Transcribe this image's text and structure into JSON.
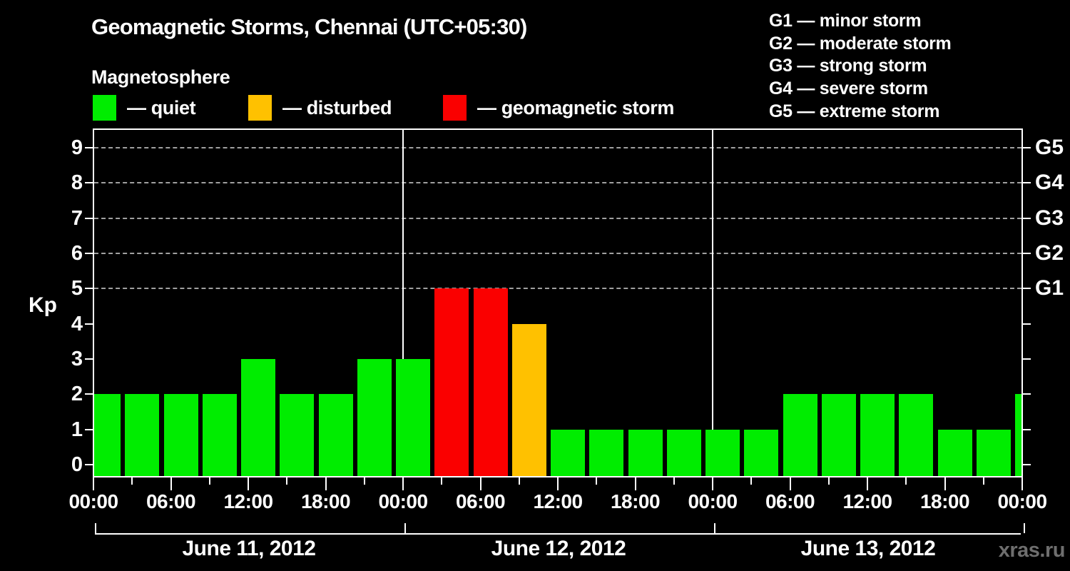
{
  "title": "Geomagnetic Storms, Chennai (UTC+05:30)",
  "legend": {
    "heading": "Magnetosphere",
    "items": [
      {
        "key": "quiet",
        "label": "— quiet",
        "color": "#00ed00"
      },
      {
        "key": "disturbed",
        "label": "— disturbed",
        "color": "#ffc100"
      },
      {
        "key": "storm",
        "label": "— geomagnetic storm",
        "color": "#fa0000"
      }
    ]
  },
  "g_scale_legend": {
    "lines": [
      "G1 — minor storm",
      "G2 — moderate storm",
      "G3 — strong storm",
      "G4 — severe storm",
      "G5 — extreme storm"
    ]
  },
  "watermark": "xras.ru",
  "chart_data": {
    "type": "bar",
    "title": "Geomagnetic Storms, Chennai (UTC+05:30)",
    "ylabel": "Kp",
    "ylim": [
      0,
      9
    ],
    "interval_hours": 3,
    "kp_tick_labels": [
      "0",
      "1",
      "2",
      "3",
      "4",
      "5",
      "6",
      "7",
      "8",
      "9"
    ],
    "gridlines_kp": [
      5,
      6,
      7,
      8,
      9
    ],
    "right_axis_labels": [
      {
        "kp": 5,
        "label": "G1"
      },
      {
        "kp": 6,
        "label": "G2"
      },
      {
        "kp": 7,
        "label": "G3"
      },
      {
        "kp": 8,
        "label": "G4"
      },
      {
        "kp": 9,
        "label": "G5"
      }
    ],
    "time_tick_labels": [
      "00:00",
      "06:00",
      "12:00",
      "18:00",
      "00:00",
      "06:00",
      "12:00",
      "18:00",
      "00:00",
      "06:00",
      "12:00",
      "18:00",
      "00:00"
    ],
    "days": [
      {
        "date": "June 11, 2012",
        "values": [
          2,
          2,
          2,
          2,
          3,
          2,
          2,
          3
        ]
      },
      {
        "date": "June 12, 2012",
        "values": [
          3,
          5,
          5,
          4,
          1,
          1,
          1,
          1
        ]
      },
      {
        "date": "June 13, 2012",
        "values": [
          1,
          1,
          2,
          2,
          2,
          2,
          1,
          1
        ]
      }
    ],
    "partial_next_bar_kp": 2,
    "thresholds": {
      "disturbed_min": 4,
      "storm_min": 5
    },
    "colors": {
      "quiet": "#00ed00",
      "disturbed": "#ffc100",
      "storm": "#fa0000",
      "axis": "#ffffff",
      "gridline": "#a0a0a0",
      "watermark": "#6e6e6e",
      "background": "#000000"
    },
    "legend_position": "top",
    "grid": "dashed horizontal at Kp 5-9 (G1-G5)"
  }
}
